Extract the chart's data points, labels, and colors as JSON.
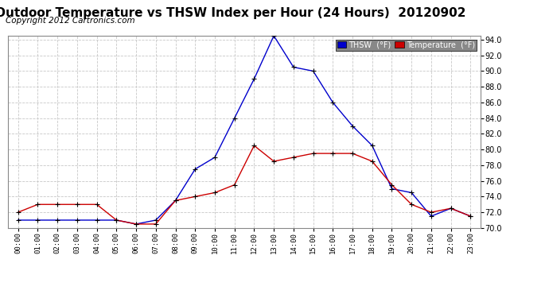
{
  "title": "Outdoor Temperature vs THSW Index per Hour (24 Hours)  20120902",
  "copyright": "Copyright 2012 Cartronics.com",
  "hours": [
    "00:00",
    "01:00",
    "02:00",
    "03:00",
    "04:00",
    "05:00",
    "06:00",
    "07:00",
    "08:00",
    "09:00",
    "10:00",
    "11:00",
    "12:00",
    "13:00",
    "14:00",
    "15:00",
    "16:00",
    "17:00",
    "18:00",
    "19:00",
    "20:00",
    "21:00",
    "22:00",
    "23:00"
  ],
  "thsw": [
    71.0,
    71.0,
    71.0,
    71.0,
    71.0,
    71.0,
    70.5,
    71.0,
    73.5,
    77.5,
    79.0,
    84.0,
    89.0,
    94.5,
    90.5,
    90.0,
    86.0,
    83.0,
    80.5,
    75.0,
    74.5,
    71.5,
    72.5,
    71.5
  ],
  "temp": [
    72.0,
    73.0,
    73.0,
    73.0,
    73.0,
    71.0,
    70.5,
    70.5,
    73.5,
    74.0,
    74.5,
    75.5,
    80.5,
    78.5,
    79.0,
    79.5,
    79.5,
    79.5,
    78.5,
    75.5,
    73.0,
    72.0,
    72.5,
    71.5
  ],
  "ylim": [
    70.0,
    94.5
  ],
  "yticks": [
    70.0,
    72.0,
    74.0,
    76.0,
    78.0,
    80.0,
    82.0,
    84.0,
    86.0,
    88.0,
    90.0,
    92.0,
    94.0
  ],
  "thsw_color": "#0000cc",
  "temp_color": "#cc0000",
  "bg_color": "#ffffff",
  "plot_bg_color": "#ffffff",
  "grid_color": "#c8c8c8",
  "legend_thsw_bg": "#0000cc",
  "legend_temp_bg": "#cc0000",
  "title_fontsize": 11,
  "copyright_fontsize": 7.5
}
